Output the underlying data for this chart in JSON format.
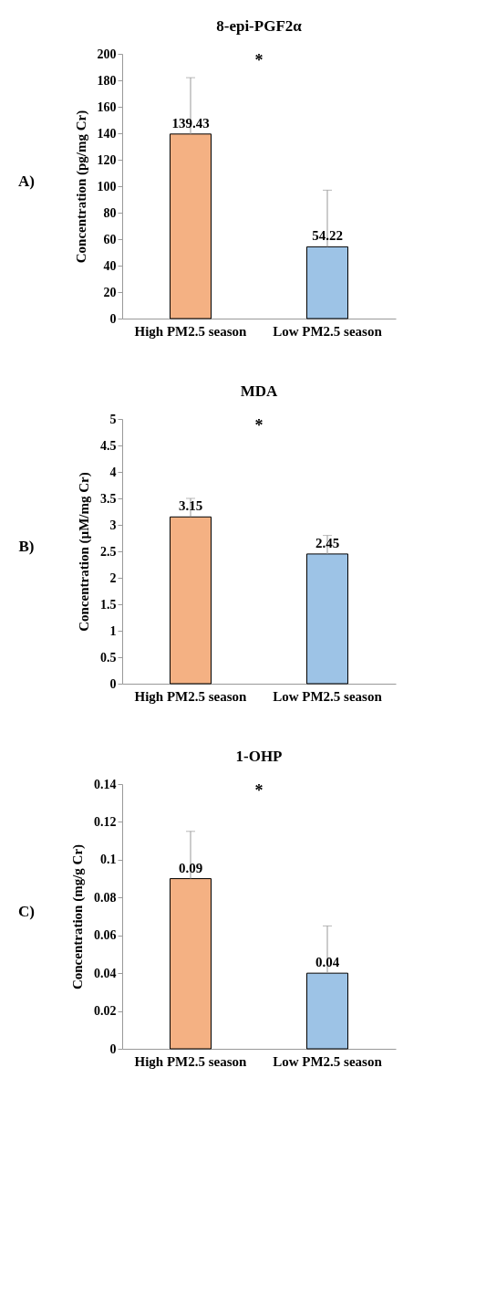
{
  "chart_data": [
    {
      "type": "bar",
      "title": "8-epi-PGF2α",
      "ylabel": "Concentration (pg/mg Cr)",
      "categories": [
        "High PM2.5 season",
        "Low PM2.5 season"
      ],
      "values": [
        139.43,
        54.22
      ],
      "colors": [
        "#f4b183",
        "#9dc3e6"
      ],
      "errors": [
        [
          139.43,
          182
        ],
        [
          54.22,
          97
        ]
      ],
      "data_labels": true,
      "ylim": [
        0,
        200
      ],
      "yticks": [
        0,
        20,
        40,
        60,
        80,
        100,
        120,
        140,
        160,
        180,
        200
      ],
      "annotations": [
        "A)",
        "*"
      ]
    },
    {
      "type": "bar",
      "title": "MDA",
      "ylabel": "Concentration  (µM/mg Cr)",
      "categories": [
        "High PM2.5 season",
        "Low PM2.5 season"
      ],
      "values": [
        3.15,
        2.45
      ],
      "colors": [
        "#f4b183",
        "#9dc3e6"
      ],
      "errors": [
        [
          3.15,
          3.5
        ],
        [
          2.45,
          2.8
        ]
      ],
      "data_labels": true,
      "ylim": [
        0,
        5
      ],
      "yticks": [
        0,
        0.5,
        1,
        1.5,
        2,
        2.5,
        3,
        3.5,
        4,
        4.5,
        5
      ],
      "annotations": [
        "B)",
        "*"
      ]
    },
    {
      "type": "bar",
      "title": "1-OHP",
      "ylabel": "Concentration (mg/g Cr)",
      "categories": [
        "High PM2.5 season",
        "Low PM2.5 season"
      ],
      "values": [
        0.09,
        0.04
      ],
      "colors": [
        "#f4b183",
        "#9dc3e6"
      ],
      "errors": [
        [
          0.09,
          0.115
        ],
        [
          0.04,
          0.065
        ]
      ],
      "data_labels": true,
      "ylim": [
        0,
        0.14
      ],
      "yticks": [
        0,
        0.02,
        0.04,
        0.06,
        0.08,
        0.1,
        0.12,
        0.14
      ],
      "annotations": [
        "C)",
        "*"
      ]
    }
  ]
}
